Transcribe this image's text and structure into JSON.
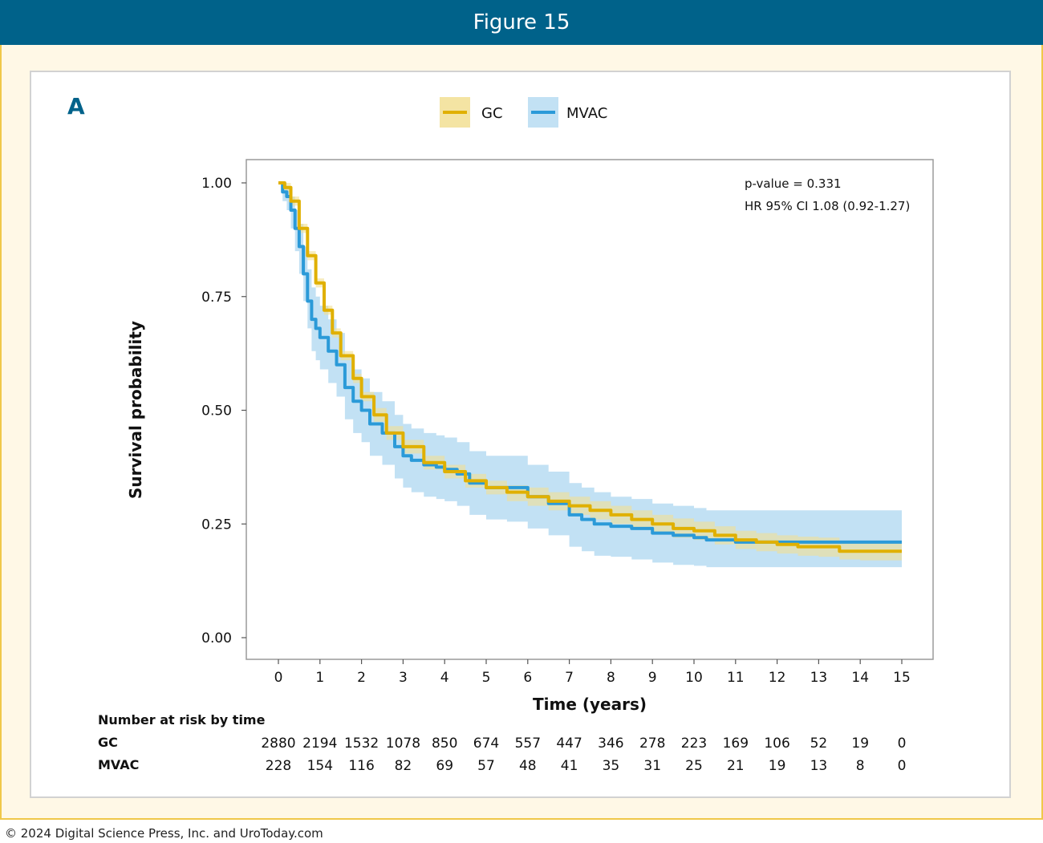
{
  "figure_title": "Figure 15",
  "panel_label": "A",
  "copyright": "© 2024 Digital Science Press, Inc. and UroToday.com",
  "colors": {
    "header": "#00628a",
    "gc": "#e0b000",
    "mvac": "#2b9ad8",
    "gc_band": "#f2df93",
    "mvac_band": "#b7dcf2"
  },
  "chart_data": {
    "type": "line",
    "title": "",
    "xlabel": "Time (years)",
    "ylabel": "Survival probability",
    "xlim": [
      0,
      15
    ],
    "ylim": [
      0,
      1
    ],
    "x_ticks": [
      "0",
      "1",
      "2",
      "3",
      "4",
      "5",
      "6",
      "7",
      "8",
      "9",
      "10",
      "11",
      "12",
      "13",
      "14",
      "15"
    ],
    "y_ticks": [
      "0.00",
      "0.25",
      "0.50",
      "0.75",
      "1.00"
    ],
    "legend_position": "top-center",
    "annotations": [
      "p-value = 0.331",
      "HR 95% CI 1.08 (0.92-1.27)"
    ],
    "series": [
      {
        "name": "GC",
        "x": [
          0,
          0.15,
          0.3,
          0.5,
          0.7,
          0.9,
          1.1,
          1.3,
          1.5,
          1.8,
          2.0,
          2.3,
          2.6,
          3.0,
          3.5,
          4.0,
          4.5,
          5.0,
          5.5,
          6.0,
          6.5,
          7.0,
          7.5,
          8.0,
          8.5,
          9.0,
          9.5,
          10.0,
          10.5,
          11.0,
          11.5,
          12.0,
          12.5,
          13.0,
          13.5,
          14.0,
          14.5,
          15.0
        ],
        "y": [
          1.0,
          0.99,
          0.96,
          0.9,
          0.84,
          0.78,
          0.72,
          0.67,
          0.62,
          0.57,
          0.53,
          0.49,
          0.45,
          0.42,
          0.385,
          0.365,
          0.345,
          0.33,
          0.32,
          0.31,
          0.3,
          0.29,
          0.28,
          0.27,
          0.26,
          0.25,
          0.24,
          0.235,
          0.225,
          0.215,
          0.21,
          0.205,
          0.2,
          0.2,
          0.19,
          0.19,
          0.19,
          0.19
        ],
        "ci_low": [
          1.0,
          0.98,
          0.95,
          0.89,
          0.83,
          0.77,
          0.71,
          0.66,
          0.61,
          0.56,
          0.52,
          0.475,
          0.435,
          0.405,
          0.37,
          0.35,
          0.33,
          0.315,
          0.3,
          0.29,
          0.28,
          0.27,
          0.26,
          0.25,
          0.24,
          0.23,
          0.22,
          0.215,
          0.205,
          0.195,
          0.19,
          0.185,
          0.18,
          0.178,
          0.172,
          0.17,
          0.17,
          0.17
        ],
        "ci_high": [
          1.0,
          1.0,
          0.97,
          0.91,
          0.85,
          0.79,
          0.73,
          0.68,
          0.63,
          0.58,
          0.54,
          0.505,
          0.465,
          0.435,
          0.4,
          0.38,
          0.36,
          0.345,
          0.335,
          0.33,
          0.32,
          0.31,
          0.3,
          0.29,
          0.28,
          0.27,
          0.262,
          0.255,
          0.245,
          0.235,
          0.23,
          0.225,
          0.222,
          0.22,
          0.212,
          0.21,
          0.21,
          0.21
        ]
      },
      {
        "name": "MVAC",
        "x": [
          0,
          0.1,
          0.2,
          0.3,
          0.4,
          0.5,
          0.6,
          0.7,
          0.8,
          0.9,
          1.0,
          1.2,
          1.4,
          1.6,
          1.8,
          2.0,
          2.2,
          2.5,
          2.8,
          3.0,
          3.2,
          3.5,
          3.8,
          4.0,
          4.3,
          4.6,
          5.0,
          5.5,
          6.0,
          6.5,
          7.0,
          7.3,
          7.6,
          8.0,
          8.5,
          9.0,
          9.5,
          10.0,
          10.3,
          11.0,
          12.0,
          13.0,
          14.0,
          15.0
        ],
        "y": [
          1.0,
          0.98,
          0.97,
          0.94,
          0.9,
          0.86,
          0.8,
          0.74,
          0.7,
          0.68,
          0.66,
          0.63,
          0.6,
          0.55,
          0.52,
          0.5,
          0.47,
          0.45,
          0.42,
          0.4,
          0.39,
          0.38,
          0.375,
          0.37,
          0.36,
          0.34,
          0.33,
          0.33,
          0.31,
          0.295,
          0.27,
          0.26,
          0.25,
          0.245,
          0.24,
          0.23,
          0.225,
          0.22,
          0.215,
          0.21,
          0.21,
          0.21,
          0.21,
          0.21
        ],
        "ci_low": [
          1.0,
          0.96,
          0.94,
          0.9,
          0.85,
          0.8,
          0.74,
          0.68,
          0.63,
          0.61,
          0.59,
          0.56,
          0.53,
          0.48,
          0.45,
          0.43,
          0.4,
          0.38,
          0.35,
          0.33,
          0.32,
          0.31,
          0.305,
          0.3,
          0.29,
          0.27,
          0.26,
          0.255,
          0.24,
          0.225,
          0.2,
          0.19,
          0.18,
          0.178,
          0.172,
          0.165,
          0.16,
          0.158,
          0.155,
          0.155,
          0.155,
          0.155,
          0.155,
          0.155
        ],
        "ci_high": [
          1.0,
          1.0,
          0.99,
          0.97,
          0.94,
          0.91,
          0.86,
          0.81,
          0.77,
          0.75,
          0.73,
          0.7,
          0.67,
          0.62,
          0.59,
          0.57,
          0.54,
          0.52,
          0.49,
          0.47,
          0.46,
          0.45,
          0.445,
          0.44,
          0.43,
          0.41,
          0.4,
          0.4,
          0.38,
          0.365,
          0.34,
          0.33,
          0.32,
          0.31,
          0.305,
          0.295,
          0.29,
          0.285,
          0.28,
          0.28,
          0.28,
          0.28,
          0.28,
          0.28
        ]
      }
    ],
    "risk_table": {
      "title": "Number at risk by time",
      "times": [
        0,
        1,
        2,
        3,
        4,
        5,
        6,
        7,
        8,
        9,
        10,
        11,
        12,
        13,
        14,
        15
      ],
      "rows": [
        {
          "name": "GC",
          "values": [
            "2880",
            "2194",
            "1532",
            "1078",
            "850",
            "674",
            "557",
            "447",
            "346",
            "278",
            "223",
            "169",
            "106",
            "52",
            "19",
            "0"
          ]
        },
        {
          "name": "MVAC",
          "values": [
            "228",
            "154",
            "116",
            "82",
            "69",
            "57",
            "48",
            "41",
            "35",
            "31",
            "25",
            "21",
            "19",
            "13",
            "8",
            "0"
          ]
        }
      ]
    }
  }
}
